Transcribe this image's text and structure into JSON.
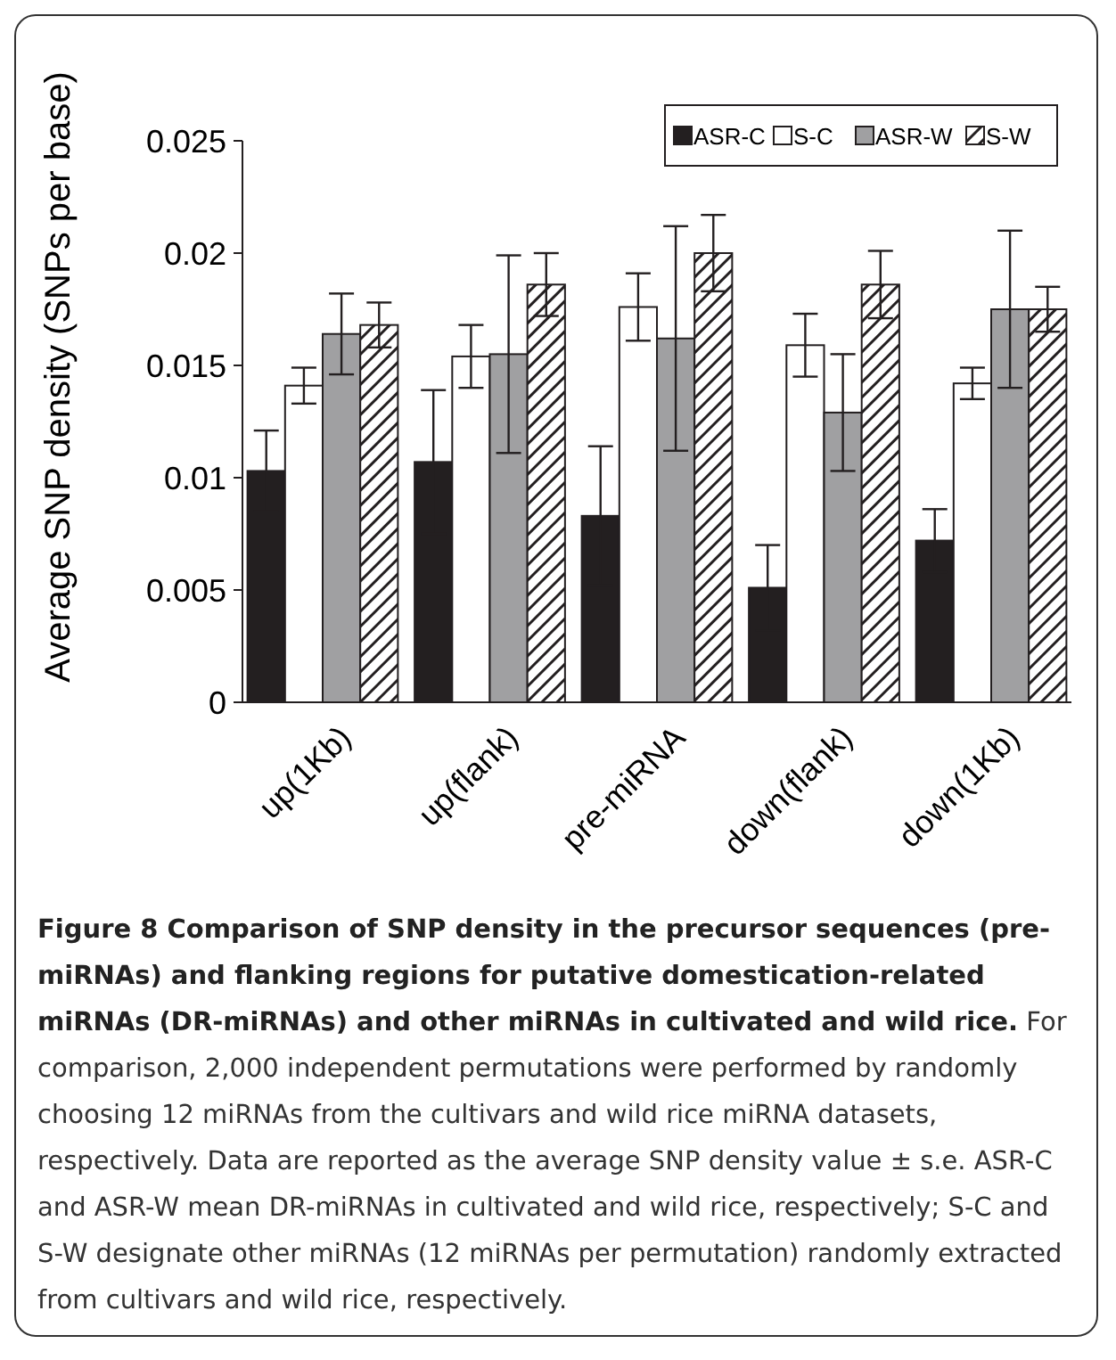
{
  "chart_data": {
    "type": "bar",
    "title": "Figure 8 Comparison of SNP density in the precursor sequences (pre-miRNAs) and flanking regions for putative domestication-related miRNAs (DR-miRNAs) and other miRNAs in cultivated and wild rice.",
    "ylabel": "Average SNP density (SNPs per base)",
    "categories": [
      "up(1Kb)",
      "up(flank)",
      "pre-miRNA",
      "down(flank)",
      "down(1Kb)"
    ],
    "series": [
      {
        "name": "ASR-C",
        "color": "#231f20",
        "values": [
          0.0103,
          0.0107,
          0.0083,
          0.0051,
          0.0072
        ],
        "errors": [
          0.0018,
          0.0032,
          0.0031,
          0.0019,
          0.0014
        ]
      },
      {
        "name": "S-C",
        "color": "#ffffff",
        "values": [
          0.0141,
          0.0154,
          0.0176,
          0.0159,
          0.0142
        ],
        "errors": [
          0.0008,
          0.0014,
          0.0015,
          0.0014,
          0.0007
        ]
      },
      {
        "name": "ASR-W",
        "color": "#a0a0a2",
        "values": [
          0.0164,
          0.0155,
          0.0162,
          0.0129,
          0.0175
        ],
        "errors": [
          0.0018,
          0.0044,
          0.005,
          0.0026,
          0.0035
        ]
      },
      {
        "name": "S-W",
        "color": "#231f20",
        "values": [
          0.0168,
          0.0186,
          0.02,
          0.0186,
          0.0175
        ],
        "errors": [
          0.001,
          0.0014,
          0.0017,
          0.0015,
          0.001
        ]
      }
    ],
    "ylim": [
      0,
      0.025
    ],
    "yticks": [
      0,
      0.005,
      0.01,
      0.015,
      0.02,
      0.025
    ],
    "grid": false,
    "legend": "top right",
    "annotations": [
      "For comparison, 2,000 independent permutations were performed by randomly choosing 12 miRNAs from the cultivars and wild rice miRNA datasets, respectively. Data are reported as the average SNP density value ± s.e. ASR-C and ASR-W mean DR-miRNAs in cultivated and wild rice, respectively; S-C and S-W designate other miRNAs (12 miRNAs per permutation) randomly extracted from cultivars and wild rice, respectively."
    ]
  }
}
